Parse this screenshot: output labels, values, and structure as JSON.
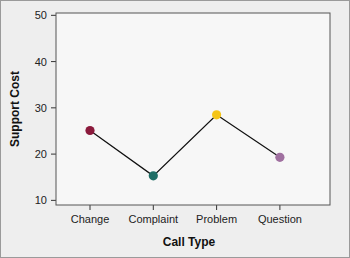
{
  "chart_data": {
    "type": "line",
    "x_label": "Call Type",
    "y_label": "Support Cost",
    "categories": [
      "Change",
      "Complaint",
      "Problem",
      "Question"
    ],
    "values": [
      25.1,
      15.3,
      28.5,
      19.3
    ],
    "colors": [
      "#8b1a3c",
      "#1f6e66",
      "#f5c518",
      "#a070a0"
    ],
    "marker": "circle",
    "line_style": "solid",
    "ylim": [
      9,
      50.5
    ],
    "yticks": [
      10,
      20,
      30,
      40,
      50
    ],
    "grid": false
  }
}
